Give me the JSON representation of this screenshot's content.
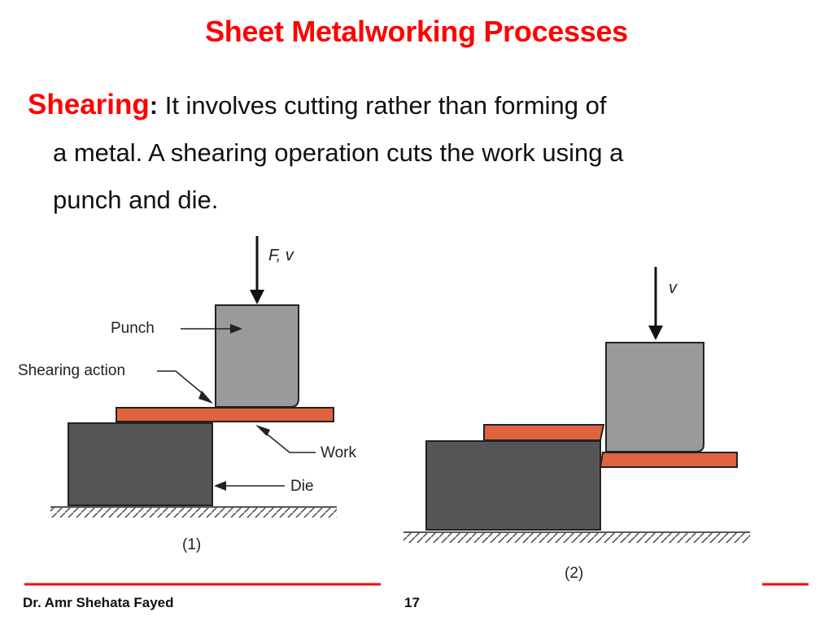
{
  "slide": {
    "title": "Sheet Metalworking Processes",
    "term": "Shearing",
    "colon": ":",
    "line1": " It involves cutting rather than forming of",
    "line2": "a metal. A shearing operation cuts the work using a",
    "line3": "punch and die."
  },
  "figure1": {
    "force_label": "F, v",
    "punch_label": "Punch",
    "shearing_label": "Shearing action",
    "work_label": "Work",
    "die_label": "Die",
    "caption": "(1)"
  },
  "figure2": {
    "velocity_label": "v",
    "caption": "(2)"
  },
  "footer": {
    "author": "Dr. Amr Shehata Fayed",
    "page": "17"
  },
  "colors": {
    "accent": "#ff0000",
    "punch": "#9a9a9a",
    "die": "#555555",
    "work": "#e0633f"
  }
}
